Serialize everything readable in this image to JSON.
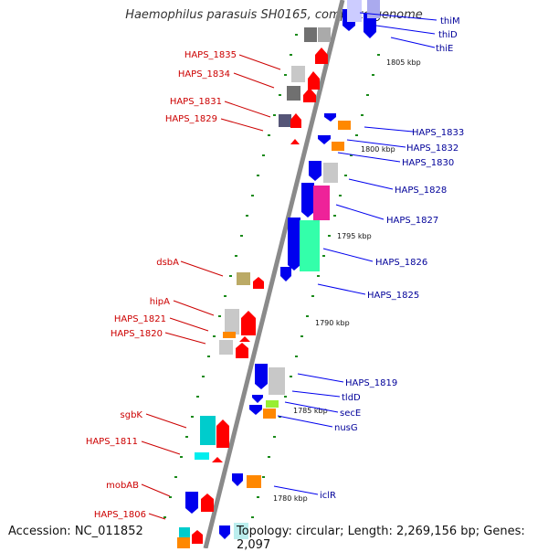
{
  "title": "Haemophilus parasuis SH0165, complete genome",
  "accession": "Accession: NC_011852",
  "topology": "Topology: circular; Length: 2,269,156 bp; Genes: 2,097",
  "scale_labels": [
    "1805 kbp",
    "1800 kbp",
    "1795 kbp",
    "1790 kbp",
    "1785 kbp",
    "1780 kbp"
  ],
  "left_labels": [
    "HAPS_1835",
    "HAPS_1834",
    "HAPS_1831",
    "HAPS_1829",
    "dsbA",
    "hipA",
    "HAPS_1821",
    "HAPS_1820",
    "sgbK",
    "HAPS_1811",
    "mobAB",
    "HAPS_1806"
  ],
  "right_labels": [
    "thiM",
    "thiD",
    "thiE",
    "HAPS_1833",
    "HAPS_1832",
    "HAPS_1830",
    "HAPS_1828",
    "HAPS_1827",
    "HAPS_1826",
    "HAPS_1825",
    "HAPS_1819",
    "tldD",
    "secE",
    "nusG",
    "iclR"
  ],
  "colors": {
    "forward_label": "#cc0000",
    "reverse_label": "#000099",
    "backbone": "#999999",
    "tick": "#228822"
  }
}
